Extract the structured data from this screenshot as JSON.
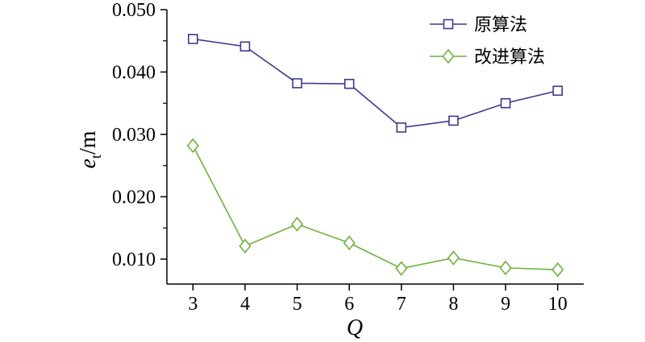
{
  "chart_data": {
    "type": "line",
    "xlabel": "Q",
    "ylabel": "e_t/m",
    "ylabel_main": "e",
    "ylabel_sub": "t",
    "ylabel_unit": "/m",
    "x": [
      3,
      4,
      5,
      6,
      7,
      8,
      9,
      10
    ],
    "x_tick_labels": [
      "3",
      "4",
      "5",
      "6",
      "7",
      "8",
      "9",
      "10"
    ],
    "xlim": [
      2.5,
      10.5
    ],
    "ylim": [
      0.006,
      0.05
    ],
    "y_ticks": [
      0.01,
      0.02,
      0.03,
      0.04,
      0.05
    ],
    "y_tick_labels": [
      "0.010",
      "0.020",
      "0.030",
      "0.040",
      "0.050"
    ],
    "grid": false,
    "legend_position": "top-right",
    "series": [
      {
        "name": "原算法",
        "marker": "square",
        "color": "#3b3b8f",
        "values": [
          0.0453,
          0.0441,
          0.0382,
          0.0381,
          0.0311,
          0.0322,
          0.035,
          0.037
        ]
      },
      {
        "name": "改进算法",
        "marker": "diamond",
        "color": "#6fb23a",
        "values": [
          0.0282,
          0.0121,
          0.0156,
          0.0126,
          0.0085,
          0.0102,
          0.0086,
          0.0083
        ]
      }
    ]
  }
}
